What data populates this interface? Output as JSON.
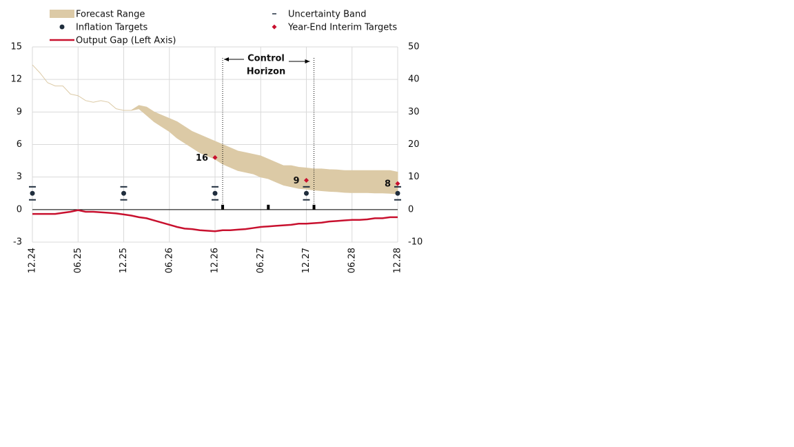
{
  "chart_data": {
    "type": "line",
    "categories": [
      "12.24",
      null,
      null,
      null,
      null,
      null,
      "06.25",
      null,
      null,
      null,
      null,
      null,
      "12.25",
      null,
      null,
      null,
      null,
      null,
      "06.26",
      null,
      null,
      null,
      null,
      null,
      "12.26",
      null,
      null,
      null,
      null,
      null,
      "06.27",
      null,
      null,
      null,
      null,
      null,
      "12.27",
      null,
      null,
      null,
      null,
      null,
      "06.28",
      null,
      null,
      null,
      null,
      null,
      "12.28"
    ],
    "ylim": [
      -3,
      15
    ],
    "yticks": [
      -3,
      0,
      3,
      6,
      9,
      12,
      15
    ],
    "y2lim": [
      -10,
      50
    ],
    "y2ticks": [
      -10,
      0,
      10,
      20,
      30,
      40,
      50
    ],
    "grid": true,
    "annotation": [
      "Control",
      "Horizon"
    ],
    "series": [
      {
        "name": "Forecast Range",
        "type": "band",
        "axis": "y2",
        "color": "#dccaa6",
        "low": [
          44.5,
          42,
          39,
          38,
          38,
          35.5,
          35,
          33.5,
          33,
          33.5,
          33,
          31,
          30.5,
          30.5,
          31,
          29,
          27,
          25.5,
          24,
          22,
          20.5,
          19,
          17.5,
          16.5,
          15.5,
          14,
          13,
          12,
          11.5,
          11,
          10,
          9.5,
          8.5,
          7.5,
          7,
          6.5,
          6.3,
          6,
          5.8,
          5.6,
          5.5,
          5.3,
          5.2,
          5.2,
          5.2,
          5.1,
          5.1,
          5,
          4.8
        ],
        "high": [
          44.5,
          42,
          39,
          38,
          38,
          35.5,
          35,
          33.5,
          33,
          33.5,
          33,
          31,
          30.5,
          30.5,
          32,
          31.5,
          30,
          29,
          28,
          27,
          25.5,
          24,
          23,
          22,
          21,
          20,
          19,
          18,
          17.5,
          17,
          16.5,
          15.5,
          14.5,
          13.5,
          13.5,
          13,
          12.8,
          12.5,
          12.5,
          12.3,
          12.2,
          12,
          12,
          12,
          12,
          12,
          12,
          12,
          11.5
        ]
      },
      {
        "name": "Uncertainty Band",
        "type": "dash",
        "axis": "y2",
        "color": "#1f2d3d",
        "low": [
          3,
          null,
          null,
          null,
          null,
          null,
          null,
          null,
          null,
          null,
          null,
          null,
          3,
          null,
          null,
          null,
          null,
          null,
          null,
          null,
          null,
          null,
          null,
          null,
          3,
          null,
          null,
          null,
          null,
          null,
          null,
          null,
          null,
          null,
          null,
          null,
          3,
          null,
          null,
          null,
          null,
          null,
          null,
          null,
          null,
          null,
          null,
          null,
          3
        ],
        "high": [
          7,
          null,
          null,
          null,
          null,
          null,
          null,
          null,
          null,
          null,
          null,
          null,
          7,
          null,
          null,
          null,
          null,
          null,
          null,
          null,
          null,
          null,
          null,
          null,
          7,
          null,
          null,
          null,
          null,
          null,
          null,
          null,
          null,
          null,
          null,
          null,
          7,
          null,
          null,
          null,
          null,
          null,
          null,
          null,
          null,
          null,
          null,
          null,
          7
        ]
      },
      {
        "name": "Inflation Targets",
        "type": "circle",
        "axis": "y2",
        "color": "#1f2d3d",
        "values": [
          5,
          null,
          null,
          null,
          null,
          null,
          null,
          null,
          null,
          null,
          null,
          null,
          5,
          null,
          null,
          null,
          null,
          null,
          null,
          null,
          null,
          null,
          null,
          null,
          5,
          null,
          null,
          null,
          null,
          null,
          null,
          null,
          null,
          null,
          null,
          null,
          5,
          null,
          null,
          null,
          null,
          null,
          null,
          null,
          null,
          null,
          null,
          null,
          5
        ]
      },
      {
        "name": "Year-End Interim Targets",
        "type": "diamond",
        "axis": "y2",
        "color": "#c8102e",
        "values": [
          null,
          null,
          null,
          null,
          null,
          null,
          null,
          null,
          null,
          null,
          null,
          null,
          null,
          null,
          null,
          null,
          null,
          null,
          null,
          null,
          null,
          null,
          null,
          null,
          16,
          null,
          null,
          null,
          null,
          null,
          null,
          null,
          null,
          null,
          null,
          null,
          9,
          null,
          null,
          null,
          null,
          null,
          null,
          null,
          null,
          null,
          null,
          null,
          8
        ]
      },
      {
        "name": "Output Gap (Left Axis)",
        "type": "line",
        "axis": "y",
        "color": "#c8102e",
        "values": [
          -0.4,
          -0.4,
          -0.4,
          -0.4,
          -0.3,
          -0.2,
          -0.05,
          -0.2,
          -0.2,
          -0.25,
          -0.3,
          -0.35,
          -0.45,
          -0.55,
          -0.7,
          -0.8,
          -1,
          -1.2,
          -1.4,
          -1.6,
          -1.75,
          -1.8,
          -1.9,
          -1.95,
          -2,
          -1.9,
          -1.9,
          -1.85,
          -1.8,
          -1.7,
          -1.6,
          -1.55,
          -1.5,
          -1.45,
          -1.4,
          -1.3,
          -1.3,
          -1.25,
          -1.2,
          -1.1,
          -1.05,
          -1,
          -0.95,
          -0.95,
          -0.9,
          -0.8,
          -0.8,
          -0.7,
          -0.7
        ]
      }
    ]
  }
}
